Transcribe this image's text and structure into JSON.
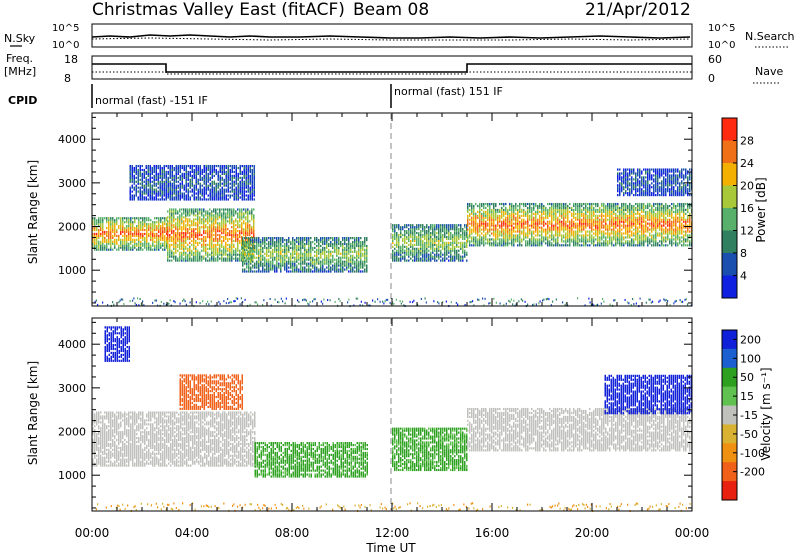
{
  "header": {
    "title": "Christmas Valley East (fitACF)",
    "beam": "Beam 08",
    "date": "21/Apr/2012"
  },
  "status_panels": {
    "nsky": {
      "label": "N.Sky",
      "ticks": [
        "10^5",
        "10^0"
      ]
    },
    "nsearch": {
      "label": "N.Search",
      "ticks": [
        "10^5",
        "10^0"
      ]
    },
    "freq": {
      "label_line1": "Freq.",
      "label_line2": "[MHz]",
      "ticks": [
        "18",
        "8"
      ]
    },
    "nave": {
      "label": "Nave",
      "ticks": [
        "60",
        "0"
      ]
    },
    "cpid": {
      "label": "CPID",
      "modes": [
        {
          "text": "normal (fast) -151 IF",
          "start_hour": 0,
          "end_hour": 12
        },
        {
          "text": "normal (fast) 151 IF",
          "start_hour": 12,
          "end_hour": 24
        }
      ]
    }
  },
  "time_axis": {
    "label": "Time UT",
    "ticks": [
      "00:00",
      "04:00",
      "08:00",
      "12:00",
      "16:00",
      "20:00",
      "00:00"
    ]
  },
  "colors": {
    "power": [
      "#1020e0",
      "#1a4fb0",
      "#2f7f60",
      "#59b06a",
      "#a8c83a",
      "#f4b000",
      "#f07018",
      "#ff2a10"
    ],
    "velocity": [
      "#1020d8",
      "#1b5fd0",
      "#2ea020",
      "#60c050",
      "#c0c0bc",
      "#d8b230",
      "#f09010",
      "#f06018",
      "#e82010"
    ]
  },
  "chart_data": [
    {
      "type": "heatmap",
      "ylabel": "Slant Range [km]",
      "xlabel": "",
      "xlim": [
        0,
        24
      ],
      "ylim": [
        180,
        4600
      ],
      "yticks": [
        "1000",
        "2000",
        "3000",
        "4000"
      ],
      "colorbar": {
        "label": "Power [dB]",
        "ticks": [
          "28",
          "24",
          "20",
          "16",
          "12",
          "8",
          "4"
        ]
      },
      "regions": [
        {
          "t": [
            0.0,
            3.0
          ],
          "r": [
            1450,
            2200
          ],
          "level": "high"
        },
        {
          "t": [
            3.0,
            6.5
          ],
          "r": [
            1200,
            2400
          ],
          "level": "high"
        },
        {
          "t": [
            6.0,
            11.0
          ],
          "r": [
            950,
            1750
          ],
          "level": "medium"
        },
        {
          "t": [
            12.0,
            15.0
          ],
          "r": [
            1200,
            2050
          ],
          "level": "medium"
        },
        {
          "t": [
            15.0,
            24.0
          ],
          "r": [
            1550,
            2500
          ],
          "level": "high"
        },
        {
          "t": [
            1.5,
            6.5
          ],
          "r": [
            2600,
            3400
          ],
          "level": "low"
        },
        {
          "t": [
            21.0,
            24.0
          ],
          "r": [
            2700,
            3300
          ],
          "level": "low"
        }
      ]
    },
    {
      "type": "heatmap",
      "ylabel": "Slant Range [km]",
      "xlabel": "Time UT",
      "xlim": [
        0,
        24
      ],
      "ylim": [
        180,
        4600
      ],
      "yticks": [
        "1000",
        "2000",
        "3000",
        "4000"
      ],
      "colorbar": {
        "label": "Velocity [m s⁻¹]",
        "ticks": [
          "200",
          "100",
          "50",
          "15",
          "-15",
          "-50",
          "-100",
          "-200"
        ]
      },
      "regions": [
        {
          "t": [
            0.0,
            6.5
          ],
          "r": [
            1200,
            2450
          ],
          "velocity": 0
        },
        {
          "t": [
            3.5,
            6.0
          ],
          "r": [
            2500,
            3300
          ],
          "velocity": -120
        },
        {
          "t": [
            6.5,
            11.0
          ],
          "r": [
            950,
            1750
          ],
          "velocity": 40
        },
        {
          "t": [
            12.0,
            15.0
          ],
          "r": [
            1100,
            2050
          ],
          "velocity": 40
        },
        {
          "t": [
            15.0,
            24.0
          ],
          "r": [
            1550,
            2500
          ],
          "velocity": 0
        },
        {
          "t": [
            20.5,
            24.0
          ],
          "r": [
            2400,
            3300
          ],
          "velocity": 190
        },
        {
          "t": [
            0.5,
            1.5
          ],
          "r": [
            3600,
            4400
          ],
          "velocity": 190
        }
      ]
    }
  ]
}
